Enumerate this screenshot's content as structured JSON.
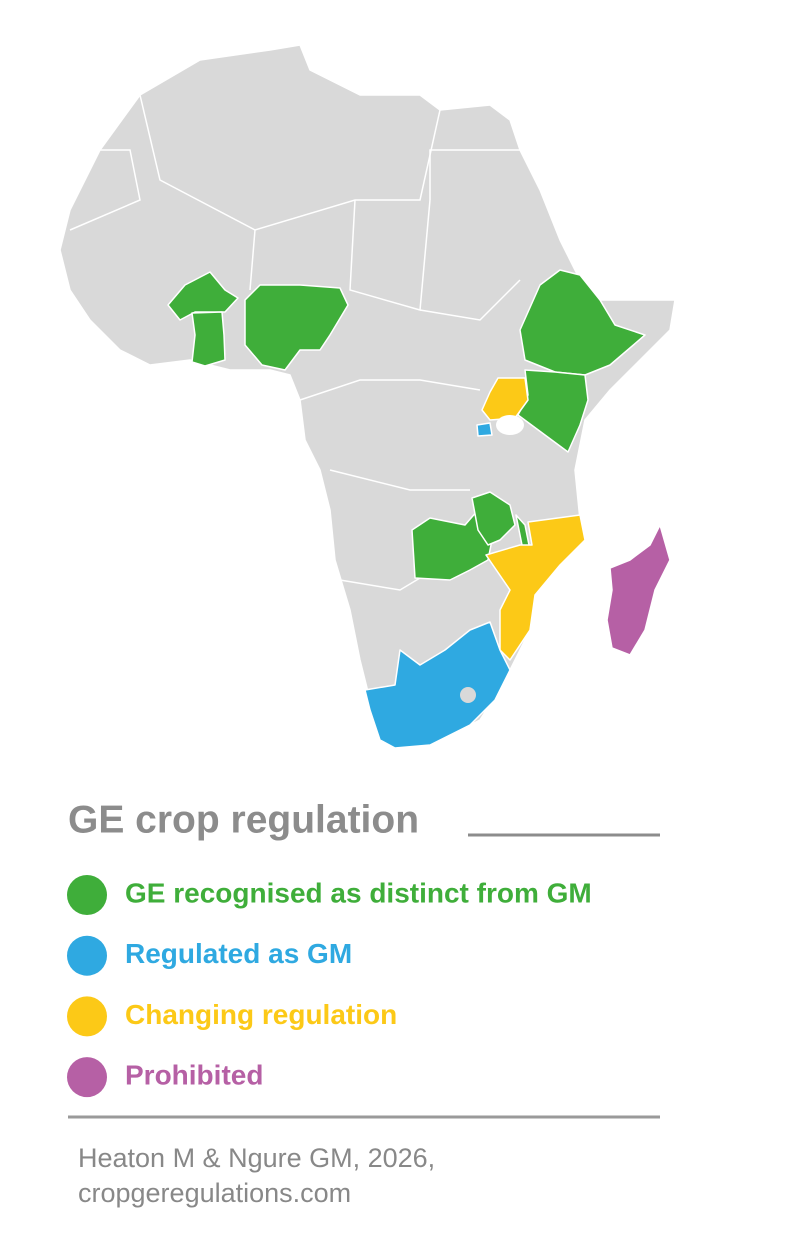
{
  "title": "GE crop regulation",
  "legend": [
    {
      "label": "GE recognised as distinct from GM",
      "color": "#3fae3a"
    },
    {
      "label": "Regulated as GM",
      "color": "#2fa9e1"
    },
    {
      "label": "Changing regulation",
      "color": "#fcc917"
    },
    {
      "label": "Prohibited",
      "color": "#b660a5"
    }
  ],
  "source": [
    "Heaton M & Ngure GM, 2026,",
    "cropgeregulations.com"
  ]
}
